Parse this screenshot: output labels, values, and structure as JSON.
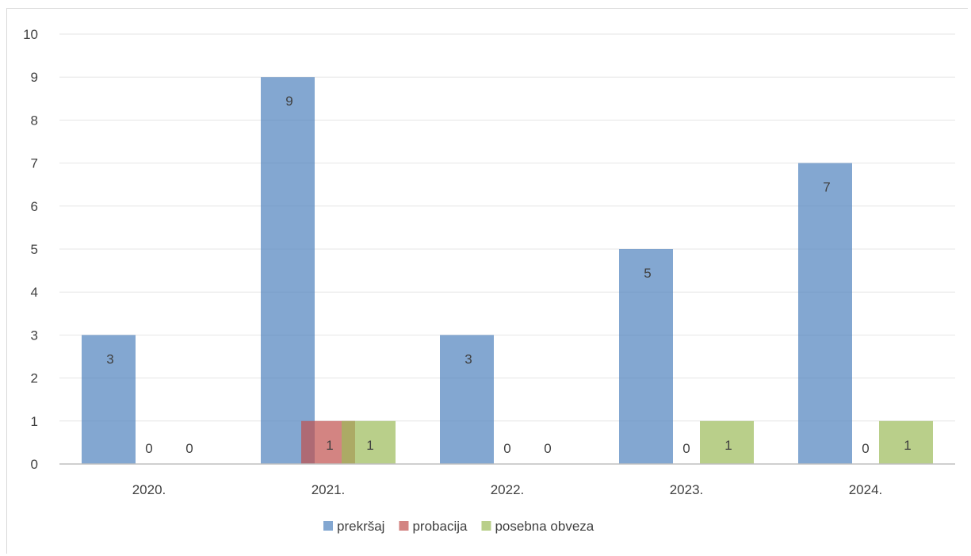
{
  "chart_data": {
    "type": "bar",
    "categories": [
      "2020.",
      "2021.",
      "2022.",
      "2023.",
      "2024."
    ],
    "series": [
      {
        "name": "prekršaj",
        "values": [
          3,
          9,
          3,
          5,
          7
        ],
        "color": "#4f81bd"
      },
      {
        "name": "probacija",
        "values": [
          0,
          1,
          0,
          0,
          0
        ],
        "color": "#c0504d"
      },
      {
        "name": "posebna obveza",
        "values": [
          0,
          1,
          0,
          1,
          1
        ],
        "color": "#9bbb59"
      }
    ],
    "ylim": [
      0,
      10
    ],
    "yticks": [
      "0",
      "1",
      "2",
      "3",
      "4",
      "5",
      "6",
      "7",
      "8",
      "9",
      "10"
    ],
    "grid": true,
    "legend": "bottom",
    "bar_opacity": 0.7
  }
}
